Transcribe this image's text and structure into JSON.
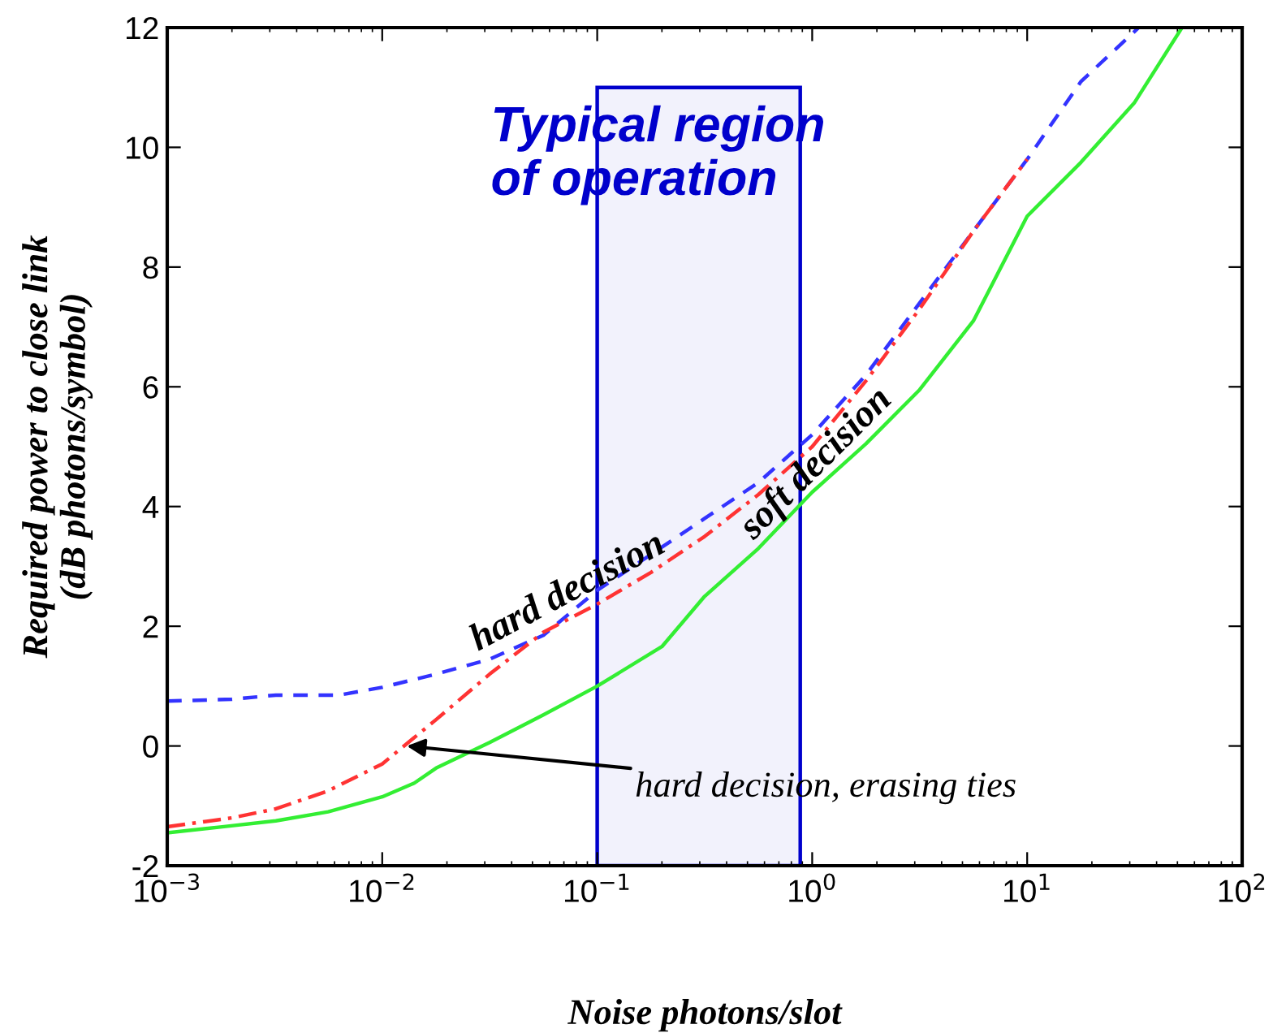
{
  "chart_data": {
    "type": "line",
    "xlabel": "Noise photons/slot",
    "ylabel": "Required power to close link\n(dB photons/symbol)",
    "log": "x",
    "xlim": [
      0.001,
      100
    ],
    "ylim": [
      -2,
      12
    ],
    "xticks": [
      {
        "value": 0.001,
        "label": "10$^{−3}$"
      },
      {
        "value": 0.01,
        "label": "10$^{−2}$"
      },
      {
        "value": 0.1,
        "label": "10$^{−1}$"
      },
      {
        "value": 1,
        "label": "10$^{0}$"
      },
      {
        "value": 10,
        "label": "10$^{1}$"
      },
      {
        "value": 100,
        "label": "10$^{2}$"
      }
    ],
    "yticks": [
      -2,
      0,
      2,
      4,
      6,
      8,
      10,
      12
    ],
    "grid": false,
    "series": [
      {
        "color": "#3333ff",
        "line_style": "dashed",
        "x": [
          0.001,
          0.002,
          0.0032,
          0.0063,
          0.01,
          0.0178,
          0.0316,
          0.0562,
          0.1,
          0.178,
          0.316,
          0.562,
          1,
          1.78,
          3.16,
          5.62,
          10,
          17.8,
          33
        ],
        "values": [
          0.75,
          0.78,
          0.85,
          0.85,
          0.98,
          1.2,
          1.45,
          1.85,
          2.6,
          3.2,
          3.8,
          4.4,
          5.2,
          6.2,
          7.4,
          8.6,
          9.8,
          11.1,
          12
        ]
      },
      {
        "color": "#ff3333",
        "line_style": "dashdot",
        "x": [
          0.001,
          0.002,
          0.0032,
          0.0056,
          0.01,
          0.0178,
          0.0316,
          0.0562,
          0.1,
          0.178,
          0.316,
          0.562,
          1,
          1.78,
          3.16,
          5.62,
          10
        ],
        "values": [
          -1.35,
          -1.2,
          -1.05,
          -0.75,
          -0.3,
          0.44,
          1.2,
          1.9,
          2.37,
          2.9,
          3.5,
          4.2,
          5.0,
          6.1,
          7.3,
          8.6,
          9.8
        ]
      },
      {
        "color": "#33ee33",
        "line_style": "solid",
        "x": [
          0.001,
          0.0018,
          0.0032,
          0.0056,
          0.01,
          0.0141,
          0.0178,
          0.0316,
          0.0562,
          0.1,
          0.2,
          0.316,
          0.562,
          1,
          1.78,
          3.16,
          5.62,
          10,
          17.8,
          31.6,
          52.5
        ],
        "values": [
          -1.45,
          -1.35,
          -1.25,
          -1.1,
          -0.85,
          -0.62,
          -0.37,
          0.06,
          0.52,
          1.0,
          1.66,
          2.5,
          3.3,
          4.24,
          5.05,
          5.95,
          7.1,
          8.85,
          9.75,
          10.75,
          12
        ]
      }
    ],
    "bands": [
      {
        "axis": "x",
        "from": 0.1,
        "to": 0.88,
        "label": "Typical region\nof operation",
        "color": "#0000cc"
      }
    ],
    "annotations": [
      {
        "text": "hard decision",
        "x": 0.08,
        "y": 2.3
      },
      {
        "text": "soft decision",
        "x": 1.2,
        "y": 4.5
      },
      {
        "text": "hard decision, erasing ties",
        "x": 0.013,
        "y": 0
      }
    ]
  }
}
